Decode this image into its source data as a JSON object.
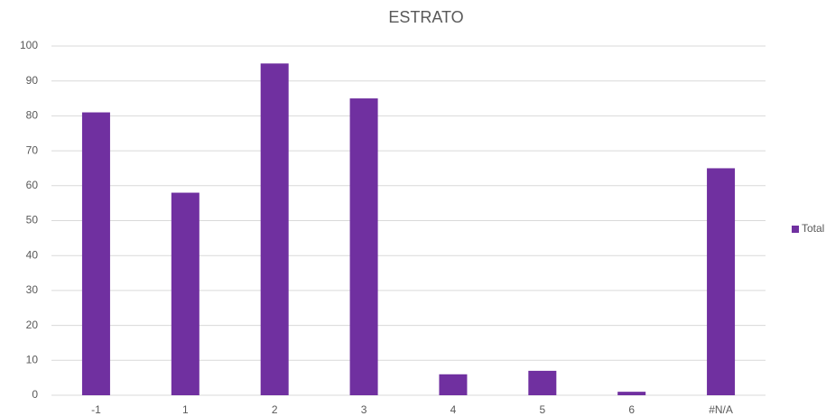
{
  "chart_data": {
    "type": "bar",
    "title": "ESTRATO",
    "categories": [
      "-1",
      "1",
      "2",
      "3",
      "4",
      "5",
      "6",
      "#N/A"
    ],
    "series": [
      {
        "name": "Total",
        "color": "#7030a0",
        "values": [
          81,
          58,
          95,
          85,
          6,
          7,
          1,
          65
        ]
      }
    ],
    "ylim": [
      0,
      100
    ],
    "yticks": [
      0,
      10,
      20,
      30,
      40,
      50,
      60,
      70,
      80,
      90,
      100
    ],
    "grid": true,
    "legend": "right"
  }
}
